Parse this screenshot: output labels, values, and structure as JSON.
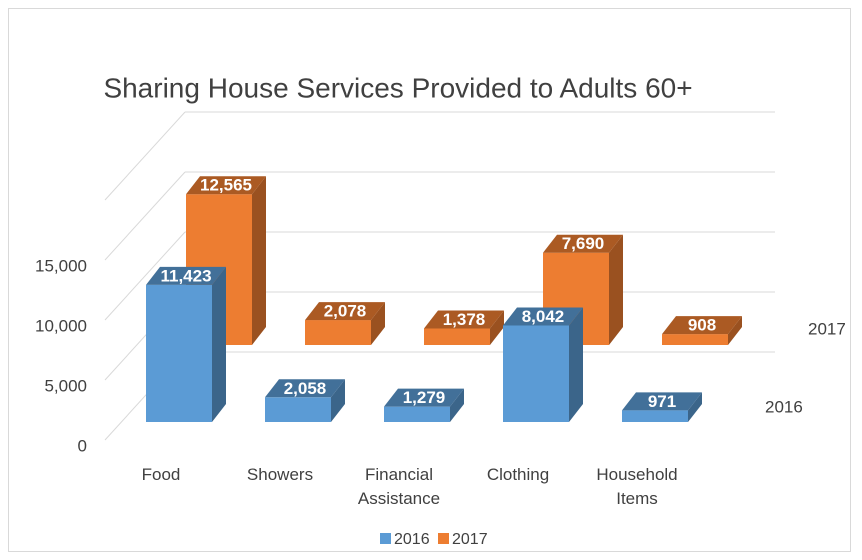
{
  "chart_data": {
    "type": "bar3d",
    "title": "Sharing House Services Provided to Adults 60+",
    "categories": [
      "Food",
      "Showers",
      "Financial Assistance",
      "Clothing",
      "Household Items"
    ],
    "series": [
      {
        "name": "2016",
        "color": "#5b9bd5",
        "values": [
          11423,
          2058,
          1279,
          8042,
          971
        ],
        "value_labels": [
          "11,423",
          "2,058",
          "1,279",
          "8,042",
          "971"
        ]
      },
      {
        "name": "2017",
        "color": "#ed7d31",
        "values": [
          12565,
          2078,
          1378,
          7690,
          908
        ],
        "value_labels": [
          "12,565",
          "2,078",
          "1,378",
          "7,690",
          "908"
        ]
      }
    ],
    "ylim": [
      0,
      20000
    ],
    "yticks": [
      0,
      {
        "value": 5000,
        "label": "5,000"
      },
      {
        "value": 10000,
        "label": "10,000"
      },
      {
        "value": 15000,
        "label": "15,000"
      }
    ],
    "grid": true,
    "legend": "bottom"
  }
}
